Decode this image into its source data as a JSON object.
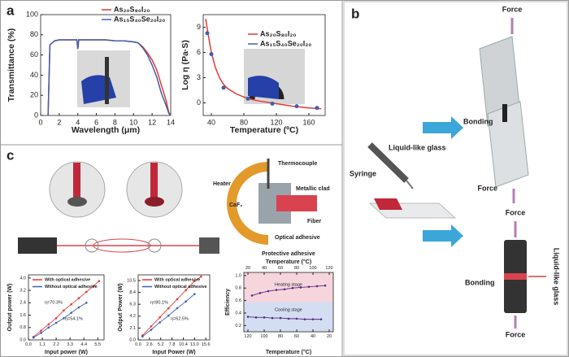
{
  "panels": [
    "a",
    "b",
    "c"
  ],
  "diagram_b": {
    "force_labels": [
      "Force",
      "Force",
      "Force",
      "Force"
    ],
    "bonding_labels": [
      "Bonding",
      "Bonding"
    ],
    "glass_labels": [
      "Liquid-like glass",
      "Liquid-like glass"
    ],
    "syringe": "Syringe"
  },
  "diagram_c": {
    "labels": [
      "Thermocouple",
      "Heater",
      "Metallic clad",
      "CaF₂",
      "Fiber",
      "Optical adhesive",
      "Protective adhesive"
    ]
  },
  "chart_data": [
    {
      "type": "line",
      "x_label": "Wavelength (μm)",
      "y_label": "Transmittance (%)",
      "x": [
        0.8,
        1,
        1.5,
        2,
        3,
        3.9,
        4,
        4.1,
        5,
        6,
        7,
        8,
        9,
        10,
        10.5,
        11,
        11.5,
        12,
        12.5,
        13,
        13.5,
        13.8,
        14
      ],
      "series": [
        {
          "name": "As₂₀S₈₀I₂₀",
          "color": "#e53935",
          "style": "line",
          "values": [
            0,
            70,
            74,
            75,
            75,
            75,
            66,
            75,
            75,
            75,
            75,
            74,
            74,
            73,
            72,
            68,
            62,
            55,
            45,
            30,
            15,
            3,
            0
          ]
        },
        {
          "name": "As₁₅S₄₀Se₂₀I₂₀",
          "color": "#3f5fb0",
          "style": "line",
          "values": [
            0,
            70,
            74,
            75,
            75,
            75,
            66,
            75,
            75,
            75,
            75,
            74,
            74,
            73,
            72,
            67,
            60,
            50,
            38,
            22,
            10,
            2,
            0
          ]
        }
      ],
      "xlim": [
        0,
        14
      ],
      "xticks": [
        0,
        2,
        4,
        6,
        8,
        10,
        12,
        14
      ],
      "ylim": [
        0,
        100
      ],
      "yticks": [
        0,
        20,
        40,
        60,
        80,
        100
      ]
    },
    {
      "type": "line",
      "x_label": "Temperature (ºC)",
      "y_label": "Log η (Pa·S)",
      "series": [
        {
          "name": "As₂₀S₈₀I₂₀",
          "color": "#e53935",
          "style": "line",
          "x": [
            33,
            36,
            40,
            45,
            50,
            55,
            60,
            70,
            80,
            90,
            100,
            120,
            140,
            160,
            175
          ],
          "values": [
            10,
            8.2,
            6,
            4.2,
            3,
            2.2,
            1.7,
            1.1,
            0.7,
            0.4,
            0.2,
            -0.1,
            -0.4,
            -0.6,
            -0.7
          ]
        },
        {
          "name": "As₁₅S₄₀Se₂₀I₂₀",
          "color": "#3f5fb0",
          "style": "markers",
          "x": [
            35,
            40,
            55,
            85,
            115,
            145,
            170
          ],
          "values": [
            8.3,
            5.8,
            1.8,
            0.5,
            -0.1,
            -0.4,
            -0.6
          ]
        }
      ],
      "xlim": [
        30,
        180
      ],
      "xticks": [
        40,
        80,
        120,
        160
      ],
      "ylim": [
        -1.5,
        10.5
      ],
      "yticks": [
        0,
        3,
        6,
        9
      ]
    },
    {
      "type": "line",
      "x_label": "Input power (W)",
      "y_label": "Output power (W)",
      "series": [
        {
          "name": "With optical adhesive",
          "color": "#e53935",
          "style": "line+markers",
          "x": [
            0.4,
            1,
            1.6,
            2.2,
            2.8,
            3.4,
            4,
            4.6,
            5.2,
            5.6
          ],
          "values": [
            0.2,
            0.6,
            1,
            1.4,
            1.9,
            2.3,
            2.7,
            3.1,
            3.5,
            3.8
          ]
        },
        {
          "name": "Without optical adhesive",
          "color": "#3f5fb0",
          "style": "line+markers",
          "x": [
            0.4,
            1,
            1.6,
            2.2,
            2.8,
            3.4,
            4,
            4.6
          ],
          "values": [
            0.15,
            0.45,
            0.8,
            1.1,
            1.4,
            1.75,
            2.1,
            2.4
          ]
        }
      ],
      "annotations": [
        {
          "text": "η=70.3%",
          "color": "#e53935"
        },
        {
          "text": "η=54.1%",
          "color": "#3f5fb0"
        }
      ],
      "xlim": [
        0,
        6
      ],
      "xticks": [
        {
          "value": 0,
          "label": "0.0"
        },
        1.1,
        2.2,
        3.3,
        4.4,
        5.5
      ],
      "ylim": [
        0,
        4.2
      ],
      "yticks": [
        {
          "value": 0,
          "label": "0.0"
        },
        0.8,
        1.6,
        2.4,
        3.2,
        {
          "value": 4,
          "label": "4.0"
        }
      ]
    },
    {
      "type": "line",
      "x_label": "Input Power (W)",
      "y_label": "Output Power (W)",
      "series": [
        {
          "name": "With optical adhesive",
          "color": "#e53935",
          "style": "line+markers",
          "x": [
            1,
            3,
            5,
            7,
            9,
            11,
            13,
            14.5
          ],
          "values": [
            0.8,
            2.4,
            4,
            5.6,
            7.2,
            8.8,
            10.4,
            11.2
          ]
        },
        {
          "name": "Without optical adhesive",
          "color": "#3f5fb0",
          "style": "line+markers",
          "x": [
            1,
            3,
            5,
            7,
            9,
            11,
            13
          ],
          "values": [
            0.6,
            1.8,
            3.1,
            4.3,
            5.6,
            6.8,
            8.1
          ]
        }
      ],
      "annotations": [
        {
          "text": "η=80.1%",
          "color": "#e53935"
        },
        {
          "text": "η=62.5%",
          "color": "#3f5fb0"
        }
      ],
      "xlim": [
        0,
        16.5
      ],
      "xticks": [
        {
          "value": 0,
          "label": "0.0"
        },
        2.6,
        5.2,
        7.8,
        10.4,
        {
          "value": 13,
          "label": "13.0"
        },
        15.6
      ],
      "ylim": [
        0,
        11.5
      ],
      "yticks": [
        {
          "value": 0,
          "label": "0.0"
        },
        2.1,
        4.2,
        6.3,
        8.4,
        10.5
      ]
    },
    {
      "type": "line",
      "x_label": "Temperature (°C)",
      "x2_label": "Temperature (°C)",
      "y_label": "Efficiency",
      "series": [
        {
          "name": "Heating stage",
          "color": "#5b2a86",
          "style": "line+markers",
          "x": [
            25,
            35,
            45,
            55,
            65,
            75,
            85,
            95,
            105,
            115
          ],
          "values": [
            0.68,
            0.72,
            0.75,
            0.77,
            0.78,
            0.8,
            0.81,
            0.82,
            0.83,
            0.84
          ]
        },
        {
          "name": "Cooling stage",
          "color": "#5b2a86",
          "style": "line+markers",
          "axis": "x2",
          "x": [
            120,
            110,
            100,
            90,
            80,
            70,
            60,
            50,
            40,
            30
          ],
          "values": [
            0.34,
            0.33,
            0.33,
            0.32,
            0.32,
            0.31,
            0.31,
            0.3,
            0.3,
            0.3
          ]
        }
      ],
      "xlim": [
        15,
        125
      ],
      "xticks": [
        20,
        40,
        60,
        80,
        100,
        120
      ],
      "x2lim": [
        125,
        15
      ],
      "x2ticks": [
        120,
        100,
        80,
        60,
        40,
        20
      ],
      "ylim": [
        0.1,
        1.05
      ],
      "yticks": [
        0.2,
        0.4,
        0.6,
        0.8,
        {
          "value": 1,
          "label": "1.0"
        }
      ]
    }
  ]
}
